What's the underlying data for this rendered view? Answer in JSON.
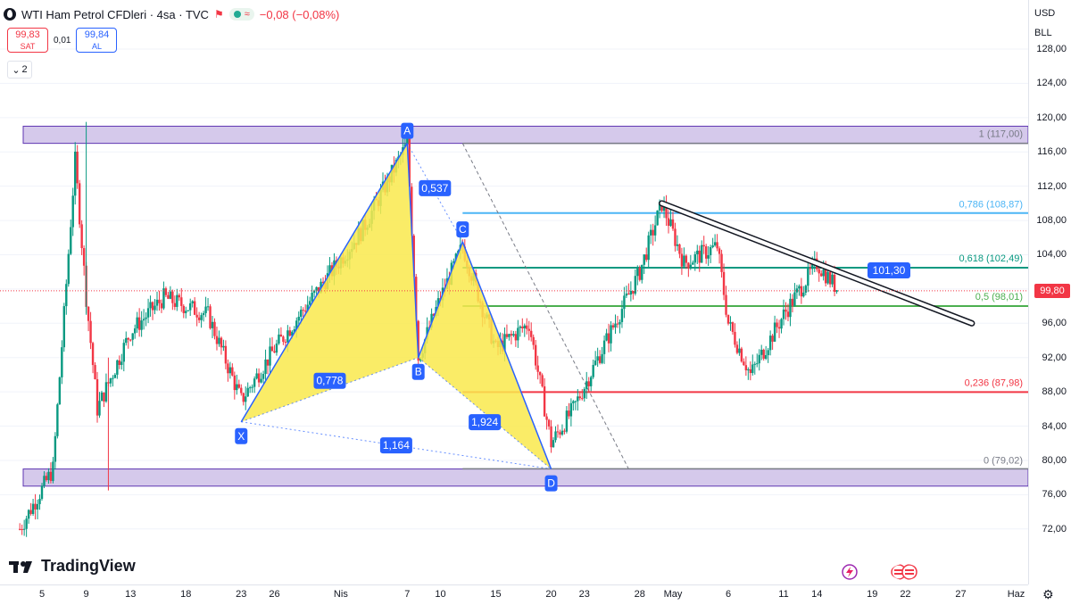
{
  "header": {
    "title": "WTI Ham Petrol CFDleri · 4sa · TVC",
    "change": "−0,08 (−0,08%)"
  },
  "trade": {
    "sell_price": "99,83",
    "sell_label": "SAT",
    "spread": "0,01",
    "buy_price": "99,84",
    "buy_label": "AL"
  },
  "indicators_toggle": "2",
  "price_scale": {
    "currency": "USD",
    "unit": "BLL",
    "last_price": "99,80",
    "ticks": [
      "128,00",
      "124,00",
      "120,00",
      "116,00",
      "112,00",
      "108,00",
      "104,00",
      "100,00",
      "96,00",
      "92,00",
      "88,00",
      "84,00",
      "80,00",
      "76,00",
      "72,00"
    ]
  },
  "time_scale": {
    "ticks": [
      "5",
      "9",
      "13",
      "18",
      "23",
      "26",
      "Nis",
      "7",
      "10",
      "15",
      "20",
      "23",
      "28",
      "May",
      "6",
      "11",
      "14",
      "19",
      "22",
      "27",
      "Haz"
    ]
  },
  "watermark": "TradingView",
  "colors": {
    "up": "#089981",
    "down": "#f23645",
    "pattern_fill": "#f9e94c",
    "zone": "#b39ddb",
    "fib_1": "#787b86",
    "fib_0786": "#4cb5f5",
    "fib_0618": "#089981",
    "fib_05": "#4caf50",
    "fib_0236": "#f23645",
    "fib_0": "#787b86",
    "label_bg": "#2962ff"
  },
  "chart_data": {
    "type": "candlestick",
    "symbol": "WTI Ham Petrol CFDleri",
    "interval": "4sa",
    "ylim": [
      70,
      130
    ],
    "x_ticks": [
      "5",
      "9",
      "13",
      "18",
      "23",
      "26",
      "Nis",
      "7",
      "10",
      "15",
      "20",
      "23",
      "28",
      "May",
      "6",
      "11",
      "14",
      "19",
      "22",
      "27",
      "Haz"
    ],
    "y_ticks": [
      72,
      76,
      80,
      84,
      88,
      92,
      96,
      100,
      104,
      108,
      112,
      116,
      120,
      124,
      128
    ],
    "price_path": [
      {
        "x": "Mar 3",
        "price": 72
      },
      {
        "x": "Mar 6",
        "price": 79
      },
      {
        "x": "Mar 8",
        "price": 115
      },
      {
        "x": "Mar 9",
        "price": 99
      },
      {
        "x": "Mar 10",
        "price": 86
      },
      {
        "x": "Mar 13",
        "price": 95
      },
      {
        "x": "Mar 16",
        "price": 99
      },
      {
        "x": "Mar 20",
        "price": 97
      },
      {
        "x": "Mar 23",
        "price": 87
      },
      {
        "x": "Mar 26",
        "price": 93
      },
      {
        "x": "Mar 30",
        "price": 100
      },
      {
        "x": "Apr 3",
        "price": 107
      },
      {
        "x": "Apr 7",
        "price": 117
      },
      {
        "x": "Apr 8",
        "price": 92
      },
      {
        "x": "Apr 10",
        "price": 99
      },
      {
        "x": "Apr 12",
        "price": 105
      },
      {
        "x": "Apr 15",
        "price": 93
      },
      {
        "x": "Apr 18",
        "price": 96
      },
      {
        "x": "Apr 20",
        "price": 82
      },
      {
        "x": "Apr 22",
        "price": 86
      },
      {
        "x": "Apr 25",
        "price": 94
      },
      {
        "x": "Apr 28",
        "price": 102
      },
      {
        "x": "Apr 30",
        "price": 110
      },
      {
        "x": "May 2",
        "price": 103
      },
      {
        "x": "May 5",
        "price": 105
      },
      {
        "x": "May 6",
        "price": 96
      },
      {
        "x": "May 8",
        "price": 90
      },
      {
        "x": "May 11",
        "price": 97
      },
      {
        "x": "May 14",
        "price": 103
      },
      {
        "x": "May 16",
        "price": 99.8
      }
    ],
    "harmonic_pattern": {
      "points": [
        {
          "label": "X",
          "x": "Mar 23",
          "price": 84.5
        },
        {
          "label": "A",
          "x": "Apr 7",
          "price": 117
        },
        {
          "label": "B",
          "x": "Apr 8",
          "price": 92
        },
        {
          "label": "C",
          "x": "Apr 12",
          "price": 105.5
        },
        {
          "label": "D",
          "x": "Apr 20",
          "price": 79
        }
      ],
      "ratios": [
        "0,778",
        "0,537",
        "1,924",
        "1,164"
      ]
    },
    "fibonacci_levels": [
      {
        "ratio": "1",
        "price": 117.0,
        "label": "1 (117,00)"
      },
      {
        "ratio": "0,786",
        "price": 108.87,
        "label": "0,786 (108,87)"
      },
      {
        "ratio": "0,618",
        "price": 102.49,
        "label": "0,618 (102,49)"
      },
      {
        "ratio": "0,5",
        "price": 98.01,
        "label": "0,5 (98,01)"
      },
      {
        "ratio": "0,236",
        "price": 87.98,
        "label": "0,236 (87,98)"
      },
      {
        "ratio": "0",
        "price": 79.02,
        "label": "0 (79,02)"
      }
    ],
    "zones": [
      {
        "from": 117,
        "to": 119
      },
      {
        "from": 77,
        "to": 79
      }
    ],
    "trendline": {
      "from": {
        "x": "Apr 30",
        "price": 110
      },
      "to": {
        "x": "May 28",
        "price": 96
      }
    },
    "trendline_label": "101,30",
    "last_price": 99.8
  }
}
